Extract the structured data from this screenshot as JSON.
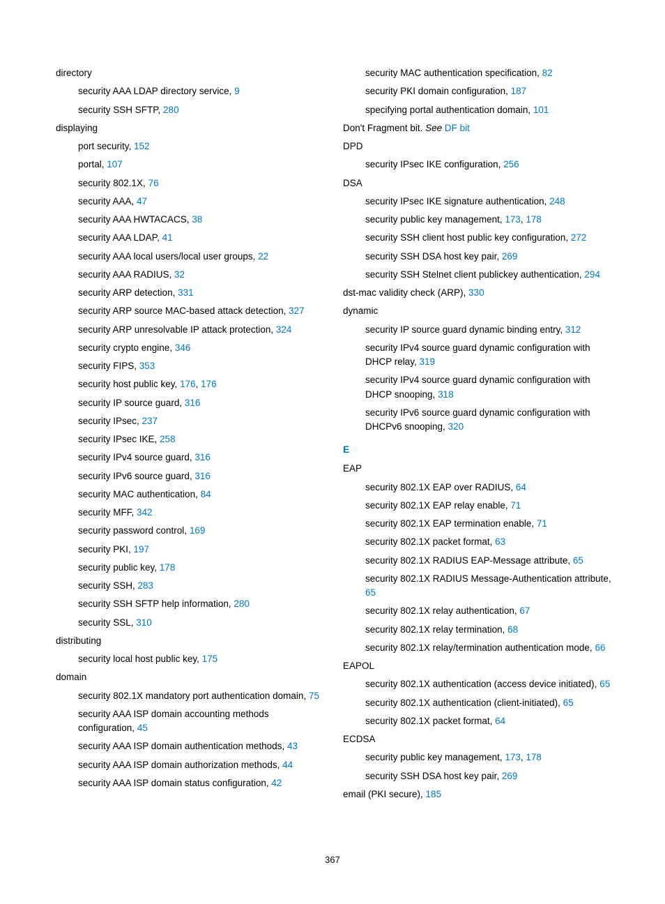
{
  "page_number": "367",
  "section_letter_E": "E",
  "col1": {
    "directory": {
      "term": "directory",
      "e1": {
        "text": "security AAA LDAP directory service, ",
        "link": "9"
      },
      "e2": {
        "text": "security SSH SFTP, ",
        "link": "280"
      }
    },
    "displaying": {
      "term": "displaying",
      "e1": {
        "text": "port security, ",
        "link": "152"
      },
      "e2": {
        "text": "portal, ",
        "link": "107"
      },
      "e3": {
        "text": "security 802.1X, ",
        "link": "76"
      },
      "e4": {
        "text": "security AAA, ",
        "link": "47"
      },
      "e5": {
        "text": "security AAA HWTACACS, ",
        "link": "38"
      },
      "e6": {
        "text": "security AAA LDAP, ",
        "link": "41"
      },
      "e7": {
        "text": "security AAA local users/local user groups, ",
        "link": "22"
      },
      "e8": {
        "text": "security AAA RADIUS, ",
        "link": "32"
      },
      "e9": {
        "text": "security ARP detection, ",
        "link": "331"
      },
      "e10": {
        "text": "security ARP source MAC-based attack detection, ",
        "link": "327"
      },
      "e11": {
        "text": "security ARP unresolvable IP attack protection, ",
        "link": "324"
      },
      "e12": {
        "text": "security crypto engine, ",
        "link": "346"
      },
      "e13": {
        "text": "security FIPS, ",
        "link": "353"
      },
      "e14": {
        "text": "security host public key, ",
        "link": "176",
        "sep": ", ",
        "link2": "176"
      },
      "e15": {
        "text": "security IP source guard, ",
        "link": "316"
      },
      "e16": {
        "text": "security IPsec, ",
        "link": "237"
      },
      "e17": {
        "text": "security IPsec IKE, ",
        "link": "258"
      },
      "e18": {
        "text": "security IPv4 source guard, ",
        "link": "316"
      },
      "e19": {
        "text": "security IPv6 source guard, ",
        "link": "316"
      },
      "e20": {
        "text": "security MAC authentication, ",
        "link": "84"
      },
      "e21": {
        "text": "security MFF, ",
        "link": "342"
      },
      "e22": {
        "text": "security password control, ",
        "link": "169"
      },
      "e23": {
        "text": "security PKI, ",
        "link": "197"
      },
      "e24": {
        "text": "security public key, ",
        "link": "178"
      },
      "e25": {
        "text": "security SSH, ",
        "link": "283"
      },
      "e26": {
        "text": "security SSH SFTP help information, ",
        "link": "280"
      },
      "e27": {
        "text": "security SSL, ",
        "link": "310"
      }
    },
    "distributing": {
      "term": "distributing",
      "e1": {
        "text": "security local host public key, ",
        "link": "175"
      }
    },
    "domain": {
      "term": "domain",
      "e1": {
        "text": "security 802.1X mandatory port authentication domain, ",
        "link": "75"
      },
      "e2": {
        "text": "security AAA ISP domain accounting methods configuration, ",
        "link": "45"
      },
      "e3": {
        "text": "security AAA ISP domain authentication methods, ",
        "link": "43"
      },
      "e4": {
        "text": "security AAA ISP domain authorization methods, ",
        "link": "44"
      },
      "e5": {
        "text": "security AAA ISP domain status configuration, ",
        "link": "42"
      }
    }
  },
  "col2": {
    "domain_cont": {
      "e1": {
        "text": "security MAC authentication specification, ",
        "link": "82"
      },
      "e2": {
        "text": "security PKI domain configuration, ",
        "link": "187"
      },
      "e3": {
        "text": "specifying portal authentication domain, ",
        "link": "101"
      }
    },
    "dontfrag": {
      "pre": "Don't Fragment bit. ",
      "see": "See",
      "sp": " ",
      "link": "DF bit"
    },
    "dpd": {
      "term": "DPD",
      "e1": {
        "text": "security IPsec IKE configuration, ",
        "link": "256"
      }
    },
    "dsa": {
      "term": "DSA",
      "e1": {
        "text": "security IPsec IKE signature authentication, ",
        "link": "248"
      },
      "e2": {
        "text": "security public key management, ",
        "link": "173",
        "sep": ", ",
        "link2": "178"
      },
      "e3": {
        "text": "security SSH client host public key configuration, ",
        "link": "272"
      },
      "e4": {
        "text": "security SSH DSA host key pair, ",
        "link": "269"
      },
      "e5": {
        "text": "security SSH Stelnet client publickey authentication, ",
        "link": "294"
      }
    },
    "dstmac": {
      "text": "dst-mac validity check (ARP), ",
      "link": "330"
    },
    "dynamic": {
      "term": "dynamic",
      "e1": {
        "text": "security IP source guard dynamic binding entry, ",
        "link": "312"
      },
      "e2": {
        "text": "security IPv4 source guard dynamic configuration with DHCP relay, ",
        "link": "319"
      },
      "e3": {
        "text": "security IPv4 source guard dynamic configuration with DHCP snooping, ",
        "link": "318"
      },
      "e4": {
        "text": "security IPv6 source guard dynamic configuration with DHCPv6 snooping, ",
        "link": "320"
      }
    },
    "eap": {
      "term": "EAP",
      "e1": {
        "text": "security 802.1X EAP over RADIUS, ",
        "link": "64"
      },
      "e2": {
        "text": "security 802.1X EAP relay enable, ",
        "link": "71"
      },
      "e3": {
        "text": "security 802.1X EAP termination enable, ",
        "link": "71"
      },
      "e4": {
        "text": "security 802.1X packet format, ",
        "link": "63"
      },
      "e5": {
        "text": "security 802.1X RADIUS EAP-Message attribute, ",
        "link": "65"
      },
      "e6": {
        "text": "security 802.1X RADIUS Message-Authentication attribute, ",
        "link": "65"
      },
      "e7": {
        "text": "security 802.1X relay authentication, ",
        "link": "67"
      },
      "e8": {
        "text": "security 802.1X relay termination, ",
        "link": "68"
      },
      "e9": {
        "text": "security 802.1X relay/termination authentication mode, ",
        "link": "66"
      }
    },
    "eapol": {
      "term": "EAPOL",
      "e1": {
        "text": "security 802.1X authentication (access device initiated), ",
        "link": "65"
      },
      "e2": {
        "text": "security 802.1X authentication (client-initiated), ",
        "link": "65"
      },
      "e3": {
        "text": "security 802.1X packet format, ",
        "link": "64"
      }
    },
    "ecdsa": {
      "term": "ECDSA",
      "e1": {
        "text": "security public key management, ",
        "link": "173",
        "sep": ", ",
        "link2": "178"
      },
      "e2": {
        "text": "security SSH DSA host key pair, ",
        "link": "269"
      }
    },
    "email": {
      "text": "email (PKI secure), ",
      "link": "185"
    }
  }
}
